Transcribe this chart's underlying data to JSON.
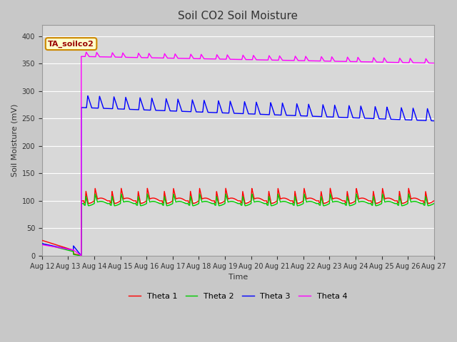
{
  "title": "Soil CO2 Soil Moisture",
  "xlabel": "Time",
  "ylabel": "Soil Moisture (mV)",
  "annotation_text": "TA_soilco2",
  "annotation_bg": "#ffffcc",
  "annotation_border": "#cc8800",
  "ylim": [
    0,
    420
  ],
  "yticks": [
    0,
    50,
    100,
    150,
    200,
    250,
    300,
    350,
    400
  ],
  "fig_bg": "#c8c8c8",
  "plot_bg": "#d8d8d8",
  "grid_color": "#ffffff",
  "legend_labels": [
    "Theta 1",
    "Theta 2",
    "Theta 3",
    "Theta 4"
  ],
  "colors": [
    "#ff0000",
    "#00cc00",
    "#0000ff",
    "#ff00ff"
  ],
  "line_width": 1.0,
  "xtick_labels": [
    "Aug 12",
    "Aug 13",
    "Aug 14",
    "Aug 15",
    "Aug 16",
    "Aug 17",
    "Aug 18",
    "Aug 19",
    "Aug 20",
    "Aug 21",
    "Aug 22",
    "Aug 23",
    "Aug 24",
    "Aug 25",
    "Aug 26",
    "Aug 27"
  ]
}
